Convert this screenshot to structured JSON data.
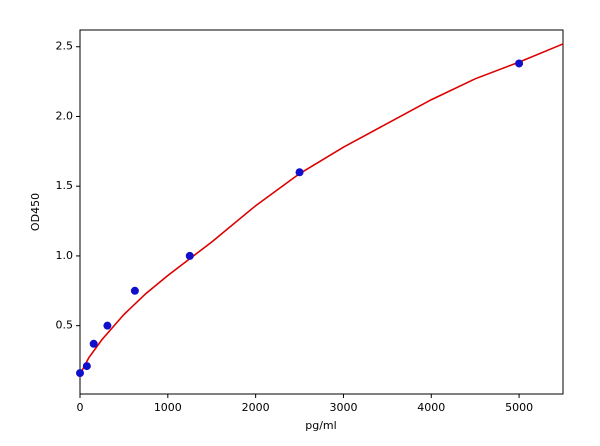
{
  "chart_data": {
    "type": "scatter",
    "xlabel": "pg/ml",
    "ylabel": "OD450",
    "xlim": [
      0,
      5500
    ],
    "ylim": [
      0.01,
      2.62
    ],
    "xticks": [
      0,
      1000,
      2000,
      3000,
      4000,
      5000
    ],
    "yticks": [
      0.5,
      {
        "value": 1,
        "label": "1.0"
      },
      1.5,
      {
        "value": 2,
        "label": "2.0"
      },
      2.5
    ],
    "series": [
      {
        "color": "#dd0000",
        "line": true,
        "x": [
          0,
          100,
          250,
          500,
          750,
          1000,
          1500,
          2000,
          2500,
          3000,
          3500,
          4000,
          4500,
          5000,
          5500
        ],
        "values": [
          0.15,
          0.27,
          0.4,
          0.58,
          0.73,
          0.86,
          1.1,
          1.36,
          1.59,
          1.78,
          1.95,
          2.12,
          2.27,
          2.39,
          2.52
        ]
      },
      {
        "color": "#1010cc",
        "line": false,
        "x": [
          0,
          78,
          156,
          312,
          625,
          1250,
          2500,
          5000
        ],
        "values": [
          0.16,
          0.21,
          0.37,
          0.5,
          0.75,
          1.0,
          1.6,
          2.38
        ]
      }
    ]
  }
}
